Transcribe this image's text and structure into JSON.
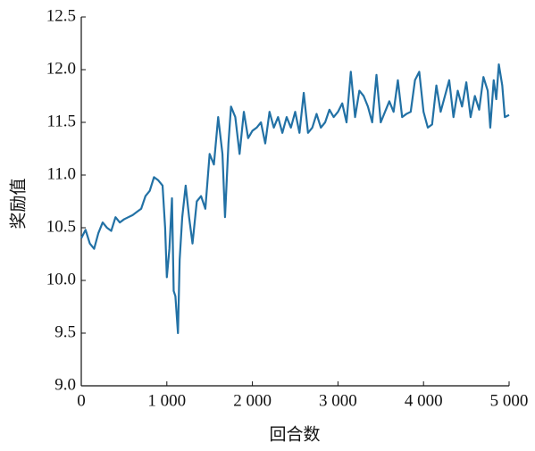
{
  "chart_data": {
    "type": "line",
    "xlabel": "回合数",
    "ylabel": "奖励值",
    "x": [
      0,
      50,
      100,
      150,
      200,
      250,
      300,
      350,
      400,
      450,
      500,
      550,
      600,
      650,
      700,
      750,
      800,
      850,
      900,
      950,
      980,
      1000,
      1030,
      1060,
      1080,
      1100,
      1130,
      1150,
      1180,
      1220,
      1260,
      1300,
      1350,
      1400,
      1450,
      1500,
      1550,
      1600,
      1650,
      1680,
      1720,
      1750,
      1800,
      1850,
      1900,
      1950,
      2000,
      2050,
      2100,
      2150,
      2200,
      2250,
      2300,
      2350,
      2400,
      2450,
      2500,
      2550,
      2600,
      2650,
      2700,
      2750,
      2800,
      2850,
      2900,
      2950,
      3000,
      3050,
      3100,
      3150,
      3200,
      3250,
      3300,
      3350,
      3400,
      3450,
      3500,
      3550,
      3600,
      3650,
      3700,
      3750,
      3800,
      3850,
      3900,
      3950,
      4000,
      4050,
      4100,
      4150,
      4200,
      4250,
      4300,
      4350,
      4400,
      4450,
      4500,
      4550,
      4600,
      4650,
      4700,
      4750,
      4780,
      4820,
      4850,
      4880,
      4920,
      4950,
      5000
    ],
    "series": [
      {
        "color": "#2271a5",
        "values": [
          10.4,
          10.48,
          10.35,
          10.3,
          10.45,
          10.55,
          10.5,
          10.47,
          10.6,
          10.55,
          10.58,
          10.6,
          10.62,
          10.65,
          10.68,
          10.8,
          10.85,
          10.98,
          10.95,
          10.9,
          10.5,
          10.03,
          10.3,
          10.78,
          9.9,
          9.85,
          9.5,
          10.2,
          10.6,
          10.9,
          10.6,
          10.35,
          10.75,
          10.8,
          10.68,
          11.2,
          11.1,
          11.55,
          11.2,
          10.6,
          11.3,
          11.65,
          11.55,
          11.2,
          11.6,
          11.35,
          11.42,
          11.45,
          11.5,
          11.3,
          11.6,
          11.45,
          11.55,
          11.4,
          11.55,
          11.45,
          11.6,
          11.4,
          11.78,
          11.4,
          11.45,
          11.58,
          11.45,
          11.5,
          11.62,
          11.55,
          11.6,
          11.68,
          11.5,
          11.98,
          11.55,
          11.8,
          11.75,
          11.65,
          11.5,
          11.95,
          11.5,
          11.6,
          11.7,
          11.6,
          11.9,
          11.55,
          11.58,
          11.6,
          11.9,
          11.98,
          11.6,
          11.45,
          11.48,
          11.85,
          11.6,
          11.75,
          11.9,
          11.55,
          11.8,
          11.65,
          11.88,
          11.55,
          11.75,
          11.62,
          11.93,
          11.8,
          11.45,
          11.9,
          11.72,
          12.05,
          11.85,
          11.55,
          11.57
        ]
      }
    ],
    "xlim": [
      0,
      5000
    ],
    "xticks": [
      0,
      {
        "value": 1000,
        "label": "1 000"
      },
      {
        "value": 2000,
        "label": "2 000"
      },
      {
        "value": 3000,
        "label": "3 000"
      },
      {
        "value": 4000,
        "label": "4 000"
      },
      {
        "value": 5000,
        "label": "5 000"
      }
    ],
    "ylim": [
      9,
      12.5
    ],
    "yticks": [
      {
        "value": 9,
        "label": "9.0"
      },
      9.5,
      {
        "value": 10,
        "label": "10.0"
      },
      10.5,
      {
        "value": 11,
        "label": "11.0"
      },
      11.5,
      {
        "value": 12,
        "label": "12.0"
      },
      12.5
    ]
  }
}
